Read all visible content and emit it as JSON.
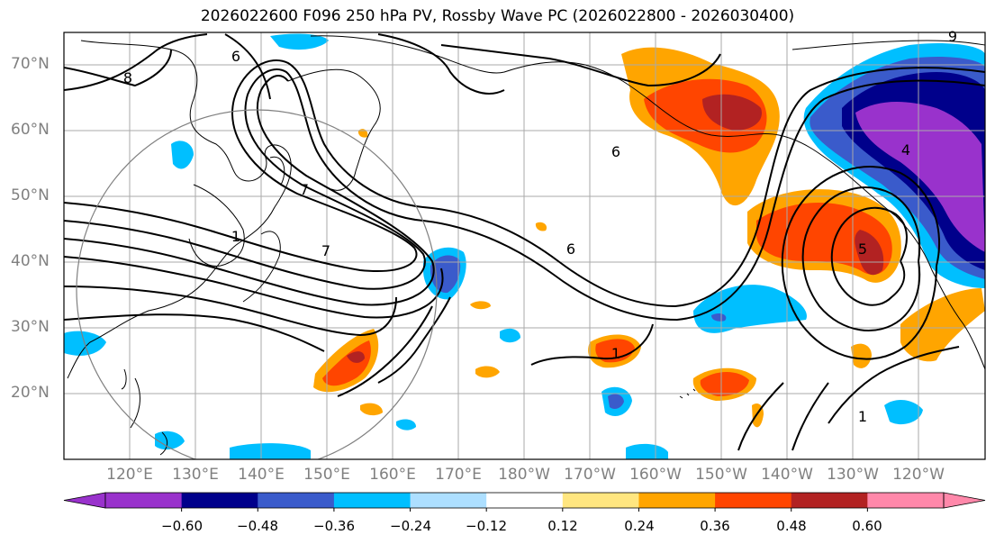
{
  "title": "2026022600 F096 250 hPa PV, Rossby Wave PC (2026022800 - 2026030400)",
  "lat_labels": [
    "70°N",
    "60°N",
    "50°N",
    "40°N",
    "30°N",
    "20°N"
  ],
  "lon_labels": [
    "120°E",
    "130°E",
    "140°E",
    "150°E",
    "160°E",
    "170°E",
    "180°W",
    "170°W",
    "160°W",
    "150°W",
    "140°W",
    "130°W",
    "120°W"
  ],
  "contour_labels": [
    "8",
    "9",
    "6",
    "6",
    "7",
    "1",
    "7",
    "6",
    "1",
    "1",
    "5",
    "4"
  ],
  "colorbar": {
    "colors": [
      "#9932CC",
      "#00008B",
      "#3A5BCB",
      "#00BFFF",
      "#ADDFFF",
      "#FFFFFF",
      "#FFE680",
      "#FFA500",
      "#FF4500",
      "#B22222",
      "#FF88AA"
    ],
    "under_color": "#9932CC",
    "over_color": "#FF88AA",
    "ticks": [
      "−0.60",
      "−0.48",
      "−0.36",
      "−0.24",
      "−0.12",
      "0.12",
      "0.24",
      "0.36",
      "0.48",
      "0.60"
    ]
  },
  "colors": {
    "positive_strong": "#B22222",
    "positive_mid": "#FF4500",
    "positive_weak": "#FFA500",
    "positive_faint": "#FFE680",
    "negative_strong": "#9932CC",
    "negative_dark": "#00008B",
    "negative_mid": "#3A5BCB",
    "negative_weak": "#00BFFF",
    "negative_faint": "#ADDFFF"
  }
}
